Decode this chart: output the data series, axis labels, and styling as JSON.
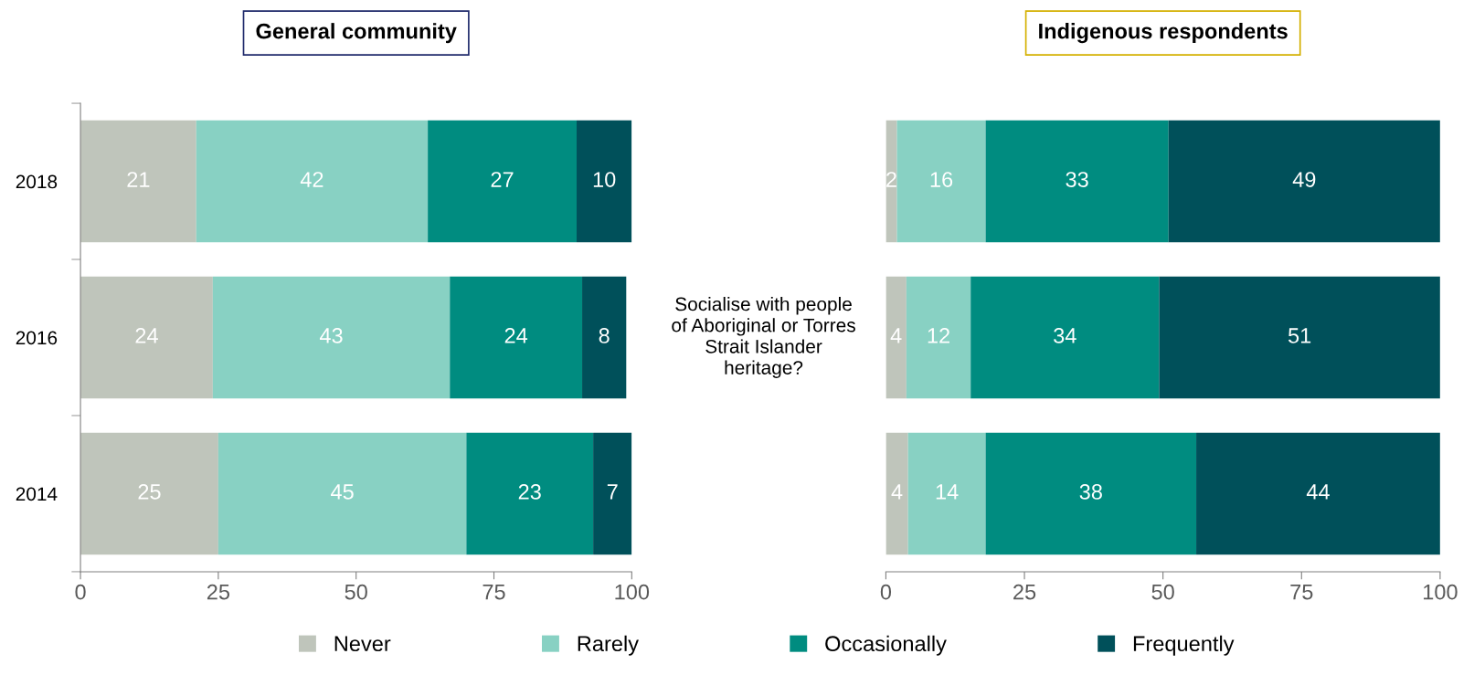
{
  "chart_data": [
    {
      "type": "bar",
      "orientation": "horizontal",
      "stacked": true,
      "title": "General community",
      "categories": [
        "2018",
        "2016",
        "2014"
      ],
      "xlim": [
        0,
        100
      ],
      "xticks": [
        0,
        25,
        50,
        75,
        100
      ],
      "data_labels": true,
      "legend": "bottom",
      "grid": false,
      "annotations": [
        "Socialise with people\nof Aboriginal or Torres\nStrait Islander\nheritage?"
      ],
      "series": [
        {
          "name": "Never",
          "color": "#bfc5bb",
          "values": [
            21,
            24,
            25
          ]
        },
        {
          "name": "Rarely",
          "color": "#88d1c3",
          "values": [
            42,
            43,
            45
          ]
        },
        {
          "name": "Occasionally",
          "color": "#008c80",
          "values": [
            27,
            24,
            23
          ]
        },
        {
          "name": "Frequently",
          "color": "#00505a",
          "values": [
            10,
            8,
            7
          ]
        }
      ]
    },
    {
      "type": "bar",
      "orientation": "horizontal",
      "stacked": true,
      "title": "Indigenous respondents",
      "categories": [
        "2018",
        "2016",
        "2014"
      ],
      "xlim": [
        0,
        100
      ],
      "xticks": [
        0,
        25,
        50,
        75,
        100
      ],
      "tick_labels": "x",
      "grid": false,
      "series": [
        {
          "color": "#bfc5bb",
          "values": [
            2,
            3.7,
            4
          ],
          "value_labels": [
            "2",
            "4",
            "4"
          ]
        },
        {
          "color": "#88d1c3",
          "values": [
            16,
            11.6,
            14
          ],
          "value_labels": [
            "16",
            "12",
            "14"
          ]
        },
        {
          "color": "#008c80",
          "values": [
            33,
            34,
            38
          ],
          "value_labels": [
            "33",
            "34",
            "38"
          ]
        },
        {
          "color": "#00505a",
          "values": [
            49,
            50.7,
            44
          ],
          "value_labels": [
            "49",
            "51",
            "44"
          ]
        }
      ]
    }
  ]
}
